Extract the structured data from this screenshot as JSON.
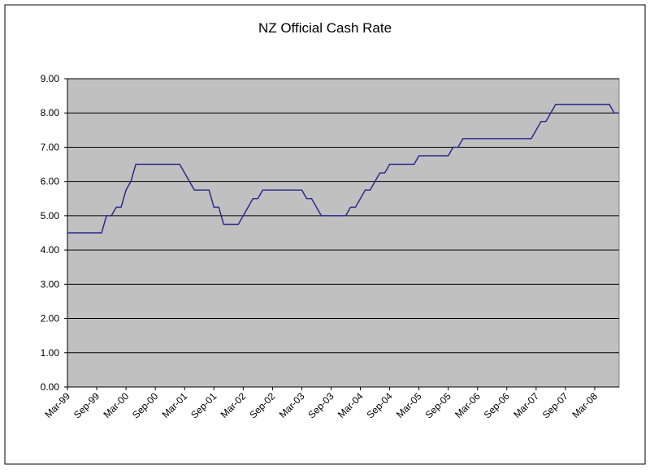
{
  "chart_data": {
    "type": "line",
    "title": "NZ Official Cash Rate",
    "categories": [
      "Mar-99",
      null,
      null,
      null,
      null,
      null,
      "Sep-99",
      null,
      null,
      null,
      null,
      null,
      "Mar-00",
      null,
      null,
      null,
      null,
      null,
      "Sep-00",
      null,
      null,
      null,
      null,
      null,
      "Mar-01",
      null,
      null,
      null,
      null,
      null,
      "Sep-01",
      null,
      null,
      null,
      null,
      null,
      "Mar-02",
      null,
      null,
      null,
      null,
      null,
      "Sep-02",
      null,
      null,
      null,
      null,
      null,
      "Mar-03",
      null,
      null,
      null,
      null,
      null,
      "Sep-03",
      null,
      null,
      null,
      null,
      null,
      "Mar-04",
      null,
      null,
      null,
      null,
      null,
      "Sep-04",
      null,
      null,
      null,
      null,
      null,
      "Mar-05",
      null,
      null,
      null,
      null,
      null,
      "Sep-05",
      null,
      null,
      null,
      null,
      null,
      "Mar-06",
      null,
      null,
      null,
      null,
      null,
      "Sep-06",
      null,
      null,
      null,
      null,
      null,
      "Mar-07",
      null,
      null,
      null,
      null,
      null,
      "Sep-07",
      null,
      null,
      null,
      null,
      null,
      "Mar-08",
      null,
      null,
      null,
      null,
      null
    ],
    "series": [
      {
        "color": "#2b2b8c",
        "values": [
          4.5,
          4.5,
          4.5,
          4.5,
          4.5,
          4.5,
          4.5,
          4.5,
          5.0,
          5.0,
          5.25,
          5.25,
          5.75,
          6.0,
          6.5,
          6.5,
          6.5,
          6.5,
          6.5,
          6.5,
          6.5,
          6.5,
          6.5,
          6.5,
          6.25,
          6.0,
          5.75,
          5.75,
          5.75,
          5.75,
          5.25,
          5.25,
          4.75,
          4.75,
          4.75,
          4.75,
          5.0,
          5.25,
          5.5,
          5.5,
          5.75,
          5.75,
          5.75,
          5.75,
          5.75,
          5.75,
          5.75,
          5.75,
          5.75,
          5.5,
          5.5,
          5.25,
          5.0,
          5.0,
          5.0,
          5.0,
          5.0,
          5.0,
          5.25,
          5.25,
          5.5,
          5.75,
          5.75,
          6.0,
          6.25,
          6.25,
          6.5,
          6.5,
          6.5,
          6.5,
          6.5,
          6.5,
          6.75,
          6.75,
          6.75,
          6.75,
          6.75,
          6.75,
          6.75,
          7.0,
          7.0,
          7.25,
          7.25,
          7.25,
          7.25,
          7.25,
          7.25,
          7.25,
          7.25,
          7.25,
          7.25,
          7.25,
          7.25,
          7.25,
          7.25,
          7.25,
          7.5,
          7.75,
          7.75,
          8.0,
          8.25,
          8.25,
          8.25,
          8.25,
          8.25,
          8.25,
          8.25,
          8.25,
          8.25,
          8.25,
          8.25,
          8.25,
          8.0,
          8.0
        ]
      }
    ],
    "ylim": [
      0,
      9
    ],
    "yticks": [
      {
        "value": 0,
        "label": "0.00"
      },
      {
        "value": 1,
        "label": "1.00"
      },
      {
        "value": 2,
        "label": "2.00"
      },
      {
        "value": 3,
        "label": "3.00"
      },
      {
        "value": 4,
        "label": "4.00"
      },
      {
        "value": 5,
        "label": "5.00"
      },
      {
        "value": 6,
        "label": "6.00"
      },
      {
        "value": 7,
        "label": "7.00"
      },
      {
        "value": 8,
        "label": "8.00"
      },
      {
        "value": 9,
        "label": "9.00"
      }
    ],
    "grid": true,
    "plot_background": "#c0c0c0"
  }
}
